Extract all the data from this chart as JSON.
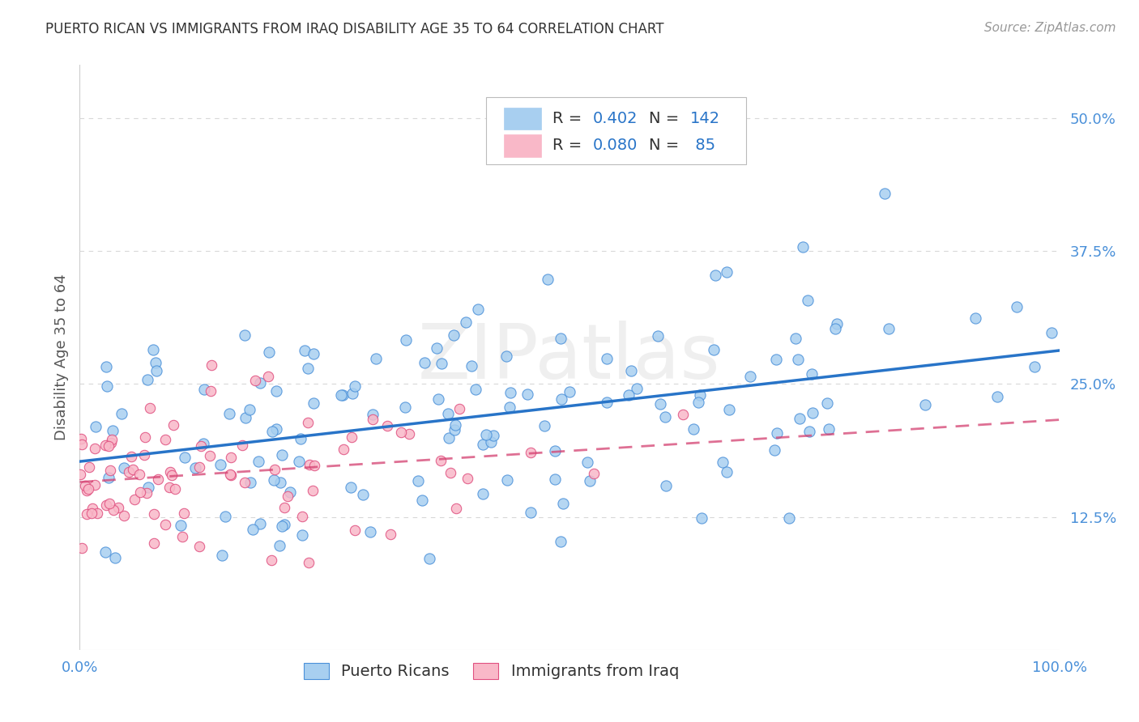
{
  "title": "PUERTO RICAN VS IMMIGRANTS FROM IRAQ DISABILITY AGE 35 TO 64 CORRELATION CHART",
  "source": "Source: ZipAtlas.com",
  "ylabel": "Disability Age 35 to 64",
  "xlim": [
    0,
    1.0
  ],
  "ylim": [
    0,
    0.55
  ],
  "yticks": [
    0.125,
    0.25,
    0.375,
    0.5
  ],
  "blue_R": 0.402,
  "blue_N": 142,
  "pink_R": 0.08,
  "pink_N": 85,
  "blue_face_color": "#a8cff0",
  "blue_edge_color": "#4a90d9",
  "pink_face_color": "#f9b8c8",
  "pink_edge_color": "#e05080",
  "blue_line_color": "#2874c8",
  "pink_line_color": "#d44070",
  "tick_color": "#4a90d9",
  "background_color": "#ffffff",
  "grid_color": "#d8d8d8",
  "watermark": "ZIPatlas",
  "title_color": "#333333",
  "source_color": "#999999",
  "ylabel_color": "#555555"
}
